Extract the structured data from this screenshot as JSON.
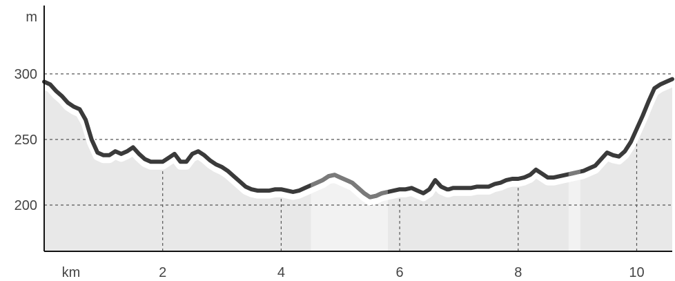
{
  "chart_data": {
    "type": "area",
    "title": "",
    "xlabel": "km",
    "ylabel": "m",
    "xlim": [
      0,
      10.6
    ],
    "ylim": [
      160,
      370
    ],
    "x_ticks": [
      2,
      4,
      6,
      8,
      10
    ],
    "y_ticks": [
      200,
      250,
      300
    ],
    "grid": true,
    "highlight_ranges": [
      [
        4.5,
        5.8
      ],
      [
        8.85,
        9.05
      ]
    ],
    "colors": {
      "line": "#3a3a3a",
      "line_highlight": "#7a7a7a",
      "area": "#e8e8e8",
      "area_highlight": "#f2f2f2",
      "halo": "#ffffff"
    },
    "series": [
      {
        "x": [
          0,
          0.1,
          0.2,
          0.3,
          0.4,
          0.5,
          0.6,
          0.7,
          0.8,
          0.9,
          1.0,
          1.1,
          1.2,
          1.3,
          1.4,
          1.5,
          1.6,
          1.7,
          1.8,
          1.9,
          2.0,
          2.1,
          2.2,
          2.3,
          2.4,
          2.5,
          2.6,
          2.7,
          2.8,
          2.9,
          3.0,
          3.1,
          3.2,
          3.3,
          3.4,
          3.5,
          3.6,
          3.7,
          3.8,
          3.9,
          4.0,
          4.1,
          4.2,
          4.3,
          4.4,
          4.5,
          4.6,
          4.7,
          4.8,
          4.9,
          5.0,
          5.1,
          5.2,
          5.3,
          5.4,
          5.5,
          5.6,
          5.7,
          5.8,
          5.9,
          6.0,
          6.1,
          6.2,
          6.3,
          6.4,
          6.5,
          6.6,
          6.7,
          6.8,
          6.83,
          6.9,
          7.0,
          7.1,
          7.2,
          7.3,
          7.4,
          7.5,
          7.6,
          7.7,
          7.8,
          7.9,
          8.0,
          8.1,
          8.2,
          8.3,
          8.4,
          8.5,
          8.6,
          8.7,
          8.8,
          8.9,
          9.0,
          9.1,
          9.2,
          9.3,
          9.4,
          9.5,
          9.6,
          9.7,
          9.8,
          9.9,
          10.0,
          10.1,
          10.2,
          10.3,
          10.4,
          10.5,
          10.6
        ],
        "values": [
          294,
          292,
          287,
          283,
          278,
          275,
          273,
          265,
          250,
          240,
          238,
          238,
          241,
          239,
          241,
          244,
          239,
          235,
          233,
          233,
          233,
          236,
          239,
          233,
          233,
          239,
          241,
          238,
          234,
          231,
          229,
          226,
          222,
          218,
          214,
          212,
          211,
          211,
          211,
          212,
          212,
          211,
          210,
          211,
          213,
          215,
          217,
          219,
          222,
          223,
          221,
          219,
          217,
          213,
          209,
          206,
          207,
          209,
          210,
          211,
          212,
          212,
          213,
          211,
          209,
          212,
          219,
          214,
          212,
          212,
          213,
          213,
          213,
          213,
          214,
          214,
          214,
          216,
          217,
          219,
          220,
          220,
          221,
          223,
          227,
          224,
          221,
          221,
          222,
          223,
          224,
          225,
          226,
          228,
          230,
          235,
          240,
          238,
          237,
          241,
          248,
          258,
          268,
          279,
          289,
          292,
          294,
          296
        ]
      }
    ]
  }
}
